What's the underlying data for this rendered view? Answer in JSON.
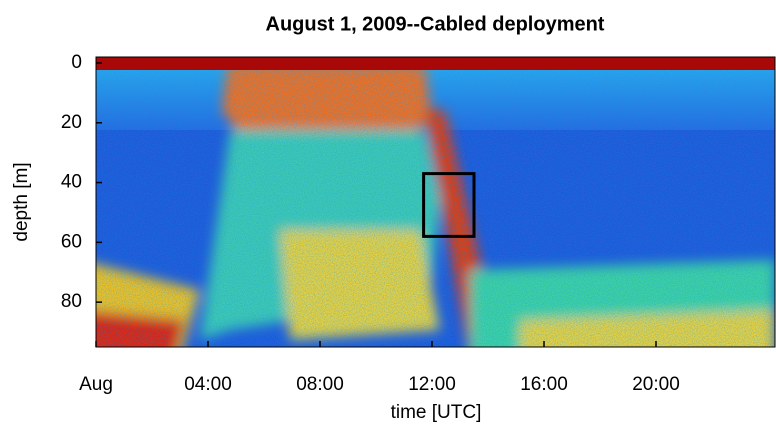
{
  "chart_data": {
    "type": "heatmap",
    "title": "August 1, 2009--Cabled deployment",
    "xlabel": "time [UTC]",
    "ylabel": "depth [m]",
    "xlim": [
      0,
      24.25
    ],
    "ylim": [
      -2,
      95
    ],
    "y_inverted": true,
    "xticks": [
      {
        "value": 0,
        "label": "Aug"
      },
      {
        "value": 4,
        "label": "04:00"
      },
      {
        "value": 8,
        "label": "08:00"
      },
      {
        "value": 12,
        "label": "12:00"
      },
      {
        "value": 16,
        "label": "16:00"
      },
      {
        "value": 20,
        "label": "20:00"
      }
    ],
    "yticks": [
      0,
      20,
      40,
      60,
      80
    ],
    "highlight_box": {
      "x": [
        11.7,
        13.5
      ],
      "y": [
        37,
        58
      ],
      "color": "#000000"
    }
  }
}
